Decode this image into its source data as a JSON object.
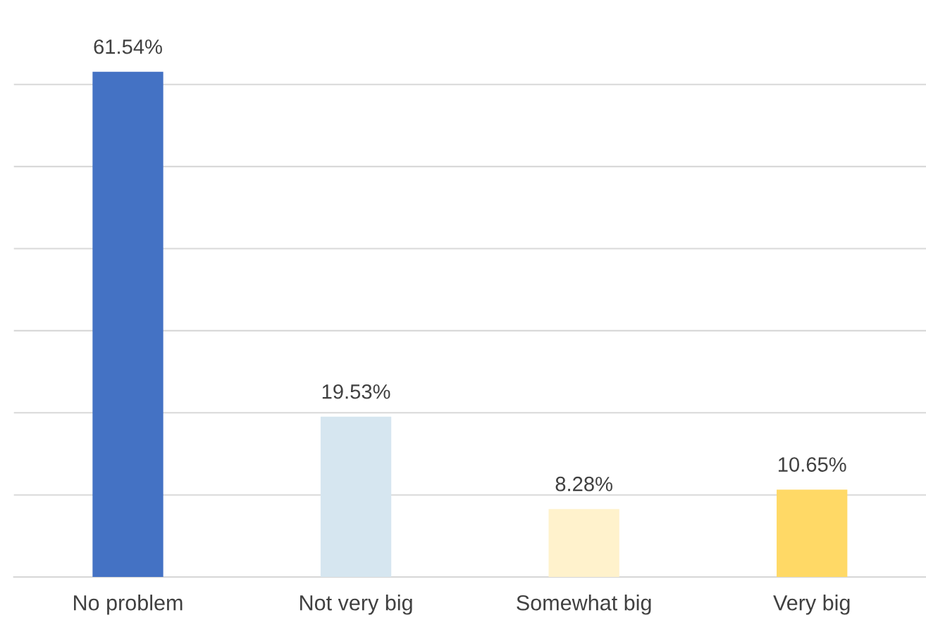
{
  "chart_data": {
    "type": "bar",
    "categories": [
      "No problem",
      "Not very big",
      "Somewhat big",
      "Very big"
    ],
    "values": [
      61.54,
      19.53,
      8.28,
      10.65
    ],
    "colors": [
      "#4472c4",
      "#d6e6f0",
      "#fff2cc",
      "#ffd966"
    ],
    "value_labels": [
      "61.54%",
      "19.53%",
      "8.28%",
      "10.65%"
    ],
    "yticks": [
      {
        "value": 0,
        "label": null
      },
      {
        "value": 10,
        "label": null
      },
      {
        "value": 20,
        "label": null
      },
      {
        "value": 30,
        "label": null
      },
      {
        "value": 40,
        "label": null
      },
      {
        "value": 50,
        "label": null
      },
      {
        "value": 60,
        "label": null
      }
    ],
    "grid": "y",
    "tick_labels": "x",
    "legend": false
  }
}
